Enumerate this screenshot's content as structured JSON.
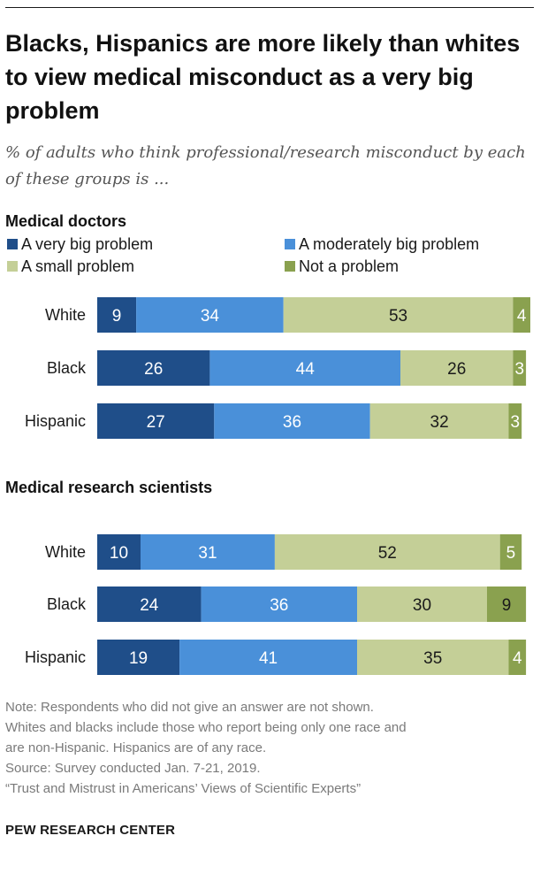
{
  "title": "Blacks, Hispanics are more likely than whites to view medical misconduct as a very big problem",
  "subtitle": "% of adults who think professional/research misconduct by each of these groups is ...",
  "notes": [
    "Note: Respondents who did not give an answer are not shown.",
    "Whites and blacks include those who report being only one race and",
    "are non-Hispanic. Hispanics are of any race.",
    "Source: Survey conducted Jan. 7-21, 2019.",
    "“Trust and Mistrust in Americans’ Views of Scientific Experts”"
  ],
  "brand": "PEW RESEARCH CENTER",
  "chart_data": {
    "type": "bar",
    "orientation": "horizontal",
    "stacked": true,
    "legend_position": "top",
    "series": [
      {
        "name": "A very big problem",
        "color": "#1f4e89"
      },
      {
        "name": "A moderately big problem",
        "color": "#4a90d9"
      },
      {
        "name": "A small problem",
        "color": "#c4cf97"
      },
      {
        "name": "Not a problem",
        "color": "#8aa14f"
      }
    ],
    "panels": [
      {
        "title": "Medical doctors",
        "categories": [
          "White",
          "Black",
          "Hispanic"
        ],
        "values": [
          [
            9,
            34,
            53,
            4
          ],
          [
            26,
            44,
            26,
            3
          ],
          [
            27,
            36,
            32,
            3
          ]
        ]
      },
      {
        "title": "Medical research scientists",
        "categories": [
          "White",
          "Black",
          "Hispanic"
        ],
        "values": [
          [
            10,
            31,
            52,
            5
          ],
          [
            24,
            36,
            30,
            9
          ],
          [
            19,
            41,
            35,
            4
          ]
        ]
      }
    ]
  }
}
